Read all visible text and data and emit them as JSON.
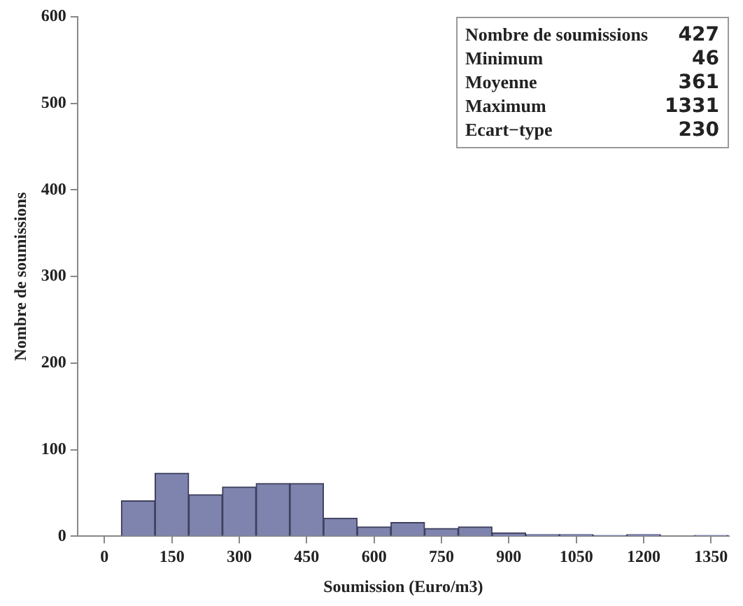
{
  "chart_data": {
    "type": "histogram",
    "xlabel": "Soumission (Euro/m3)",
    "ylabel": "Nombre de soumissions",
    "bins": [
      37.5,
      112.5,
      187.5,
      262.5,
      337.5,
      412.5,
      487.5,
      562.5,
      637.5,
      712.5,
      787.5,
      862.5,
      937.5,
      1012.5,
      1087.5,
      1162.5,
      1237.5,
      1312.5,
      1387.5
    ],
    "values": [
      41,
      73,
      48,
      57,
      61,
      61,
      21,
      11,
      16,
      9,
      11,
      4,
      2,
      2,
      1,
      2,
      0,
      1
    ],
    "color": "#7f84ae",
    "xlim": [
      -60,
      1390
    ],
    "xticks": [
      0,
      150,
      300,
      450,
      600,
      750,
      900,
      1050,
      1200,
      1350
    ],
    "ylim": [
      0,
      600
    ],
    "yticks": [
      0,
      100,
      200,
      300,
      400,
      500,
      600
    ],
    "grid": false,
    "legend": false,
    "annotations": [
      "Nombre de soumissions",
      "427",
      "Minimum",
      "46",
      "Moyenne",
      "361",
      "Maximum",
      "1331",
      "Ecart−type",
      "230"
    ]
  }
}
